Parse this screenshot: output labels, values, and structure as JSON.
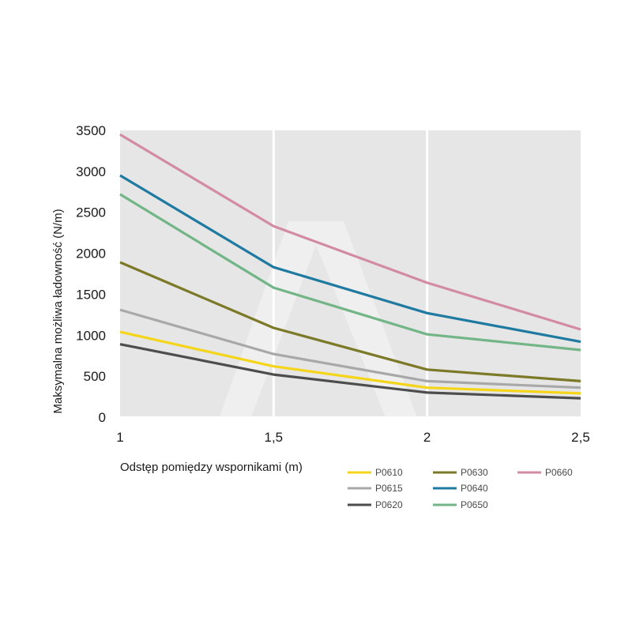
{
  "chart_data": {
    "type": "line",
    "title": "",
    "xlabel": "Odstęp pomiędzy wspornikami (m)",
    "ylabel": "Maksymalna możliwa ładowność (N/m)",
    "x": [
      1,
      1.5,
      2,
      2.5
    ],
    "x_tick_labels": [
      "1",
      "1,5",
      "2",
      "2,5"
    ],
    "xlim": [
      1,
      2.5
    ],
    "ylim": [
      0,
      3500
    ],
    "y_ticks": [
      0,
      500,
      1000,
      1500,
      2000,
      2500,
      3000,
      3500
    ],
    "y_tick_labels": [
      "0",
      "500",
      "1000",
      "1500",
      "2000",
      "2500",
      "3000",
      "3500"
    ],
    "grid": true,
    "plot_background": "#e6e6e6",
    "legend_position": "bottom-right",
    "series": [
      {
        "name": "P0610",
        "color": "#f5d519",
        "values": [
          1040,
          620,
          360,
          290
        ]
      },
      {
        "name": "P0615",
        "color": "#a8a8a8",
        "values": [
          1310,
          770,
          440,
          360
        ]
      },
      {
        "name": "P0620",
        "color": "#4d4d4d",
        "values": [
          890,
          520,
          300,
          230
        ]
      },
      {
        "name": "P0630",
        "color": "#7c7a28",
        "values": [
          1890,
          1090,
          580,
          440
        ]
      },
      {
        "name": "P0640",
        "color": "#1f7aa1",
        "values": [
          2950,
          1830,
          1270,
          920
        ]
      },
      {
        "name": "P0650",
        "color": "#72b586",
        "values": [
          2720,
          1580,
          1010,
          820
        ]
      },
      {
        "name": "P0660",
        "color": "#d38ba4",
        "values": [
          3450,
          2330,
          1640,
          1070
        ]
      }
    ]
  }
}
